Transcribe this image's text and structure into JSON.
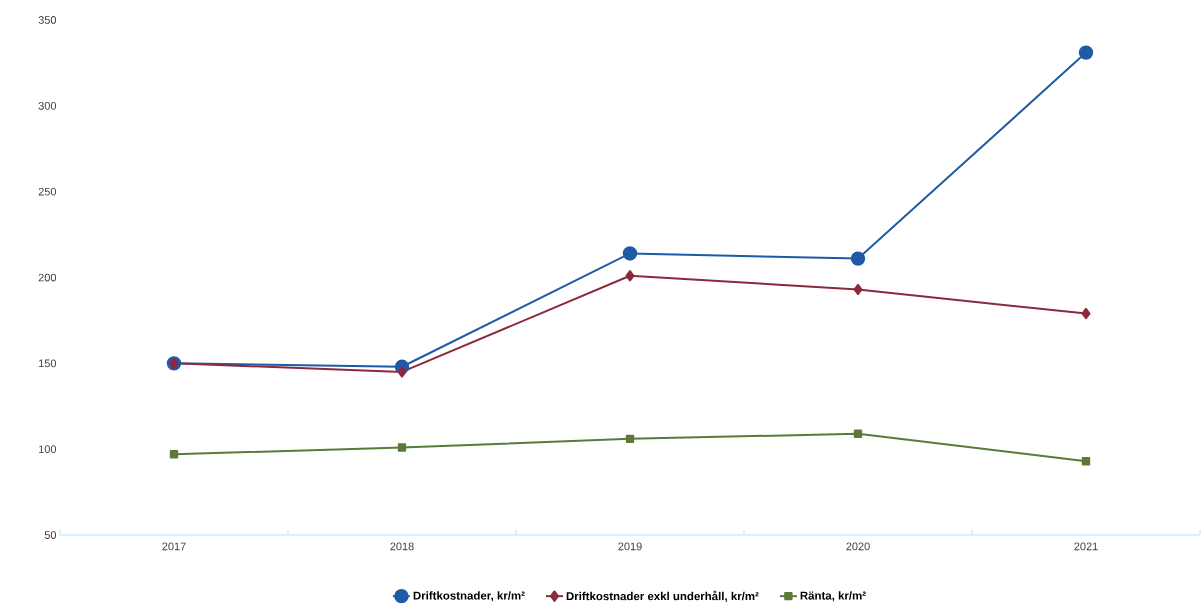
{
  "chart_data": {
    "type": "line",
    "categories": [
      "2017",
      "2018",
      "2019",
      "2020",
      "2021"
    ],
    "series": [
      {
        "name": "Driftkostnader, kr/m²",
        "color": "#1f5aa6",
        "marker": "circle",
        "values": [
          150,
          148,
          214,
          211,
          331
        ]
      },
      {
        "name": "Driftkostnader exkl underhåll, kr/m²",
        "color": "#8b2a3c",
        "marker": "diamond",
        "values": [
          150,
          145,
          201,
          193,
          179
        ]
      },
      {
        "name": "Ränta, kr/m²",
        "color": "#5b7a3a",
        "marker": "square",
        "values": [
          97,
          101,
          106,
          109,
          93
        ]
      }
    ],
    "ylim": [
      50,
      350
    ],
    "yticks": [
      50,
      100,
      150,
      200,
      250,
      300,
      350
    ],
    "grid": false,
    "legend": "bottom",
    "line_style": "solid"
  }
}
